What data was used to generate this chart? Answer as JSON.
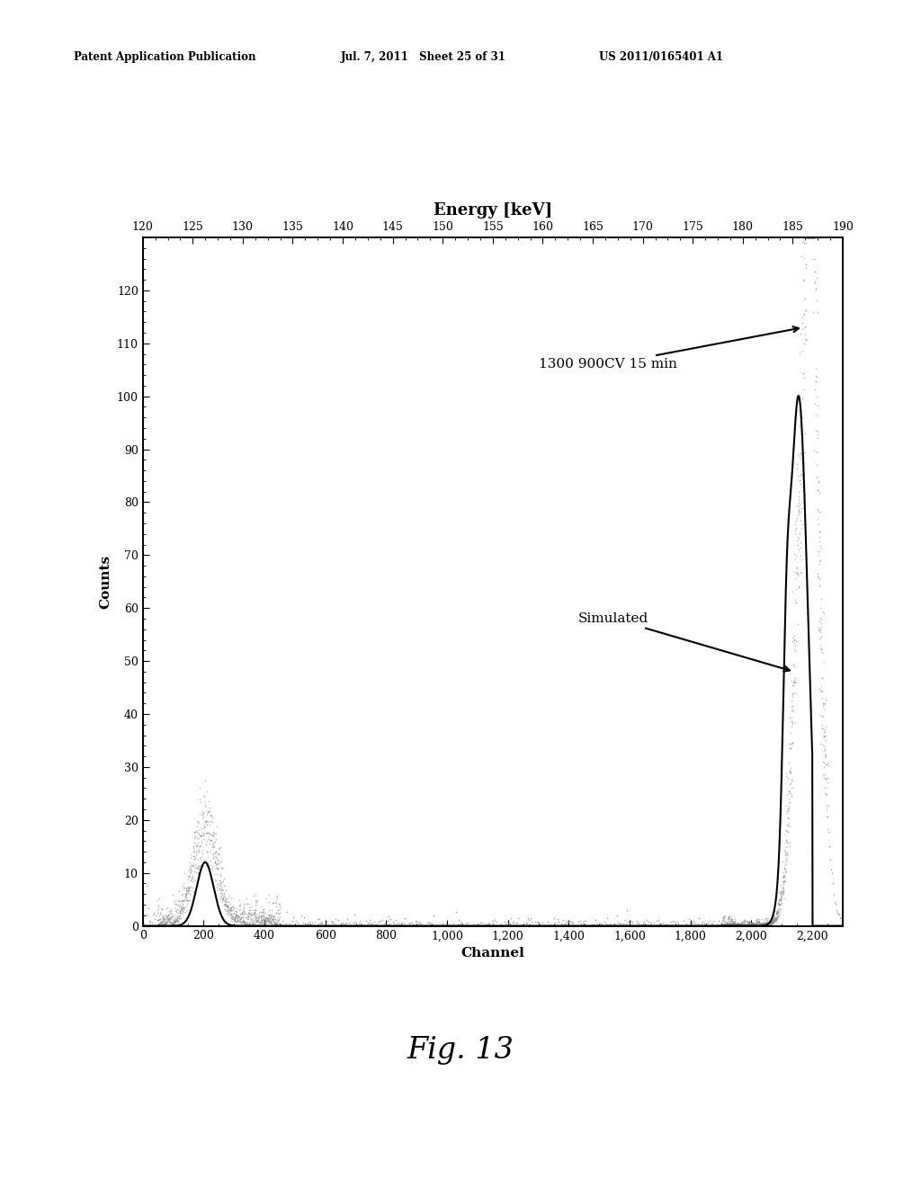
{
  "title_top": "Energy [keV]",
  "xlabel": "Channel",
  "ylabel": "Counts",
  "x_top_ticks": [
    120,
    125,
    130,
    135,
    140,
    145,
    150,
    155,
    160,
    165,
    170,
    175,
    180,
    185,
    190
  ],
  "x_bottom_ticks": [
    0,
    200,
    400,
    600,
    800,
    1000,
    1200,
    1400,
    1600,
    1800,
    2000,
    2200
  ],
  "x_bottom_labels": [
    "0",
    "200",
    "400",
    "600",
    "800",
    "1,000",
    "1,200",
    "1,400",
    "1,600",
    "1,800",
    "2,000",
    "2,200"
  ],
  "ylim": [
    0,
    130
  ],
  "xlim": [
    0,
    2300
  ],
  "y_ticks": [
    0,
    10,
    20,
    30,
    40,
    50,
    60,
    70,
    80,
    90,
    100,
    110,
    120
  ],
  "label_1300": "1300 900CV 15 min",
  "label_simulated": "Simulated",
  "header_left": "Patent Application Publication",
  "header_center": "Jul. 7, 2011   Sheet 25 of 31",
  "header_right": "US 2011/0165401 A1",
  "fig_label": "Fig. 13",
  "bg_color": "#ffffff",
  "energy_min": 120,
  "energy_max": 190,
  "channel_max": 2300,
  "peak1_channel": 205,
  "peak1_sigma": 28,
  "peak1_amp_gray": 17,
  "peak1_amp_sim": 12,
  "peak2_channel": 2155,
  "peak2_sigma_sim": 30,
  "peak2_amp_sim": 100,
  "peak2_shoulder_channel": 2115,
  "peak2_shoulder_sigma": 12,
  "peak2_shoulder_amp": 26,
  "peak2_gray_sigma": 35,
  "peak2_gray_amp": 115,
  "cliff_channel": 2200
}
